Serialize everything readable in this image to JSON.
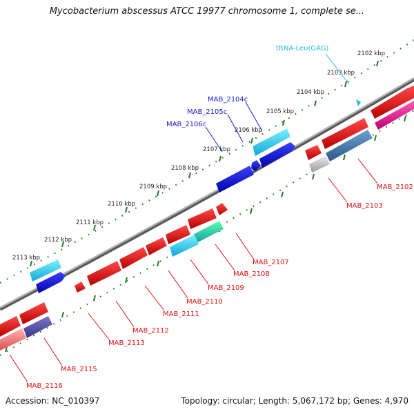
{
  "title": "Mycobacterium abscessus ATCC 19977 chromosome 1, complete se...",
  "footer": {
    "accession": "Accession: NC_010397",
    "summary": "Topology: circular; Length: 5,067,172 bp; Genes: 4,970"
  },
  "colors": {
    "forward_cds": "#0b10d8",
    "forward_label": "#1a1acc",
    "forward_cyan": "#1ec8f0",
    "reverse_cds": "#e01010",
    "reverse_label": "#e01010",
    "trna_label": "#22b8e8",
    "backbone": "#8a8a8a",
    "ticks": "#1f7a1f"
  },
  "ticks": [
    "2102 kbp",
    "2103 kbp",
    "2104 kbp",
    "2105 kbp",
    "2106 kbp",
    "2107 kbp",
    "2108 kbp",
    "2109 kbp",
    "2110 kbp",
    "2111 kbp",
    "2112 kbp",
    "2113 kbp"
  ],
  "forward_labels": [
    {
      "id": "fl1",
      "text": "tRNA-Leu(GAG)",
      "kind": "trna"
    },
    {
      "id": "fl2",
      "text": "MAB_2104c",
      "kind": "cds"
    },
    {
      "id": "fl3",
      "text": "MAB_2105c",
      "kind": "cds"
    },
    {
      "id": "fl4",
      "text": "MAB_2106c",
      "kind": "cds"
    }
  ],
  "reverse_labels": [
    {
      "id": "rl1",
      "text": "MAB_2102"
    },
    {
      "id": "rl2",
      "text": "MAB_2103"
    },
    {
      "id": "rl3",
      "text": "MAB_2107"
    },
    {
      "id": "rl4",
      "text": "MAB_2108"
    },
    {
      "id": "rl5",
      "text": "MAB_2109"
    },
    {
      "id": "rl6",
      "text": "MAB_2110"
    },
    {
      "id": "rl7",
      "text": "MAB_2111"
    },
    {
      "id": "rl8",
      "text": "MAB_2112"
    },
    {
      "id": "rl9",
      "text": "MAB_2113"
    },
    {
      "id": "rl10",
      "text": "MAB_2115"
    },
    {
      "id": "rl11",
      "text": "MAB_2116"
    }
  ]
}
